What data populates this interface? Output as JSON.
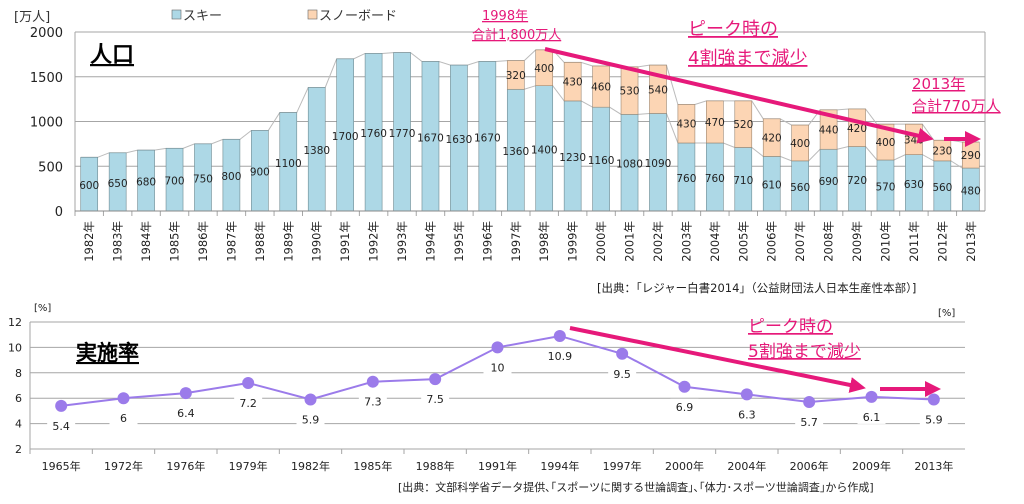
{
  "chart_data": [
    {
      "type": "bar",
      "stacked": true,
      "title": "人口",
      "ylabel": "[万人]",
      "ylim": [
        0,
        2000
      ],
      "yticks": [
        0,
        500,
        1000,
        1500,
        2000
      ],
      "grid": true,
      "legend": "top",
      "categories": [
        "1982年",
        "1983年",
        "1984年",
        "1985年",
        "1986年",
        "1987年",
        "1988年",
        "1989年",
        "1990年",
        "1991年",
        "1992年",
        "1993年",
        "1994年",
        "1995年",
        "1996年",
        "1997年",
        "1998年",
        "1999年",
        "2000年",
        "2001年",
        "2002年",
        "2003年",
        "2004年",
        "2005年",
        "2006年",
        "2007年",
        "2008年",
        "2009年",
        "2010年",
        "2011年",
        "2012年",
        "2013年"
      ],
      "series": [
        {
          "name": "スキー",
          "color": "#add8e6",
          "values": [
            600,
            650,
            680,
            700,
            750,
            800,
            900,
            1100,
            1380,
            1700,
            1760,
            1770,
            1670,
            1630,
            1670,
            1360,
            1400,
            1230,
            1160,
            1080,
            1090,
            760,
            760,
            710,
            610,
            560,
            690,
            720,
            570,
            630,
            560,
            480
          ]
        },
        {
          "name": "スノーボード",
          "color": "#fcd5b4",
          "values": [
            null,
            null,
            null,
            null,
            null,
            null,
            null,
            null,
            null,
            null,
            null,
            null,
            null,
            null,
            null,
            320,
            400,
            430,
            460,
            530,
            540,
            430,
            470,
            520,
            420,
            400,
            440,
            420,
            400,
            340,
            230,
            290
          ]
        }
      ],
      "annotations": {
        "peak_year": "1998年",
        "peak_total": "合計1,800万人",
        "decline_line1": "ピーク時の",
        "decline_line2": "4割強まで減少",
        "end_year": "2013年",
        "end_total": "合計770万人"
      },
      "source": "[出典：｢レジャー白書2014｣（公益財団法人日本生産性本部）]"
    },
    {
      "type": "line",
      "title": "実施率",
      "ylabel": "[%]",
      "ylabel_right": "[%]",
      "ylim": [
        2,
        12
      ],
      "yticks": [
        2,
        4,
        6,
        8,
        10,
        12
      ],
      "grid": true,
      "color": "#9b7bea",
      "categories": [
        "1965年",
        "1972年",
        "1976年",
        "1979年",
        "1982年",
        "1985年",
        "1988年",
        "1991年",
        "1994年",
        "1997年",
        "2000年",
        "2004年",
        "2006年",
        "2009年",
        "2013年"
      ],
      "values": [
        5.4,
        6,
        6.4,
        7.2,
        5.9,
        7.3,
        7.5,
        10,
        10.9,
        9.5,
        6.9,
        6.3,
        5.7,
        6.1,
        5.9
      ],
      "annotations": {
        "decline_line1": "ピーク時の",
        "decline_line2": "5割強まで減少"
      },
      "source": "[出典：文部科学省データ提供､｢スポーツに関する世論調査｣､｢体力･スポーツ世論調査｣から作成]"
    }
  ],
  "colors": {
    "accent": "#e6197a",
    "grid": "#a6a6a6"
  }
}
